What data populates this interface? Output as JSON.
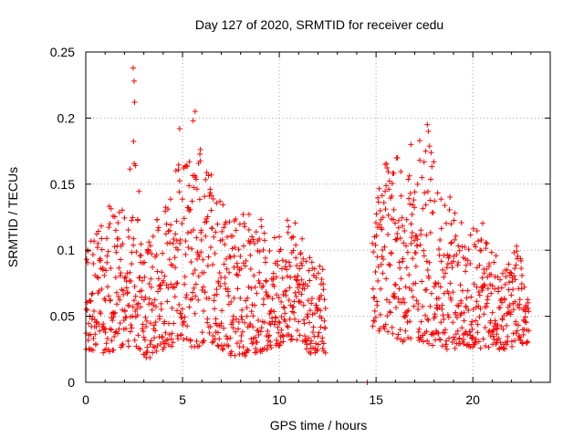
{
  "chart_data": {
    "type": "scatter",
    "title": "Day 127 of 2020, SRMTID for receiver cedu",
    "xlabel": "GPS time / hours",
    "ylabel": "SRMTID / TECUs",
    "xlim": [
      0,
      24
    ],
    "ylim": [
      0,
      0.25
    ],
    "x_ticks": [
      0,
      5,
      10,
      15,
      20
    ],
    "y_ticks": [
      0,
      0.05,
      0.1,
      0.15,
      0.2,
      0.25
    ],
    "x_tick_labels": [
      "0",
      "5",
      "10",
      "15",
      "20"
    ],
    "y_tick_labels": [
      "0",
      "0.05",
      "0.1",
      "0.15",
      "0.2",
      "0.25"
    ],
    "grid": true,
    "marker": "+",
    "color": "#ff0000",
    "data_gap_hours": [
      12.4,
      14.8
    ],
    "outlier_points": [
      {
        "x": 14.55,
        "y": 0.0
      },
      {
        "x": 2.45,
        "y": 0.238
      },
      {
        "x": 2.5,
        "y": 0.228
      },
      {
        "x": 2.52,
        "y": 0.212
      },
      {
        "x": 5.65,
        "y": 0.205
      },
      {
        "x": 5.55,
        "y": 0.198
      },
      {
        "x": 4.85,
        "y": 0.192
      },
      {
        "x": 17.65,
        "y": 0.195
      },
      {
        "x": 17.7,
        "y": 0.19
      },
      {
        "x": 16.8,
        "y": 0.18
      }
    ],
    "envelope": [
      {
        "x": 0.0,
        "lo": 0.025,
        "hi": 0.1
      },
      {
        "x": 1.0,
        "lo": 0.022,
        "hi": 0.135
      },
      {
        "x": 2.0,
        "lo": 0.025,
        "hi": 0.13
      },
      {
        "x": 2.5,
        "lo": 0.03,
        "hi": 0.19
      },
      {
        "x": 3.0,
        "lo": 0.015,
        "hi": 0.1
      },
      {
        "x": 4.0,
        "lo": 0.025,
        "hi": 0.135
      },
      {
        "x": 5.0,
        "lo": 0.03,
        "hi": 0.175
      },
      {
        "x": 5.6,
        "lo": 0.025,
        "hi": 0.185
      },
      {
        "x": 6.5,
        "lo": 0.03,
        "hi": 0.16
      },
      {
        "x": 7.5,
        "lo": 0.02,
        "hi": 0.12
      },
      {
        "x": 8.5,
        "lo": 0.02,
        "hi": 0.14
      },
      {
        "x": 9.5,
        "lo": 0.025,
        "hi": 0.11
      },
      {
        "x": 10.5,
        "lo": 0.03,
        "hi": 0.13
      },
      {
        "x": 11.5,
        "lo": 0.02,
        "hi": 0.1
      },
      {
        "x": 12.3,
        "lo": 0.02,
        "hi": 0.085
      },
      {
        "x": 14.8,
        "lo": 0.04,
        "hi": 0.13
      },
      {
        "x": 15.5,
        "lo": 0.035,
        "hi": 0.17
      },
      {
        "x": 16.5,
        "lo": 0.03,
        "hi": 0.17
      },
      {
        "x": 17.5,
        "lo": 0.03,
        "hi": 0.19
      },
      {
        "x": 18.5,
        "lo": 0.025,
        "hi": 0.15
      },
      {
        "x": 19.5,
        "lo": 0.025,
        "hi": 0.12
      },
      {
        "x": 20.5,
        "lo": 0.025,
        "hi": 0.125
      },
      {
        "x": 21.5,
        "lo": 0.025,
        "hi": 0.085
      },
      {
        "x": 22.3,
        "lo": 0.025,
        "hi": 0.105
      },
      {
        "x": 22.8,
        "lo": 0.03,
        "hi": 0.07
      }
    ]
  }
}
